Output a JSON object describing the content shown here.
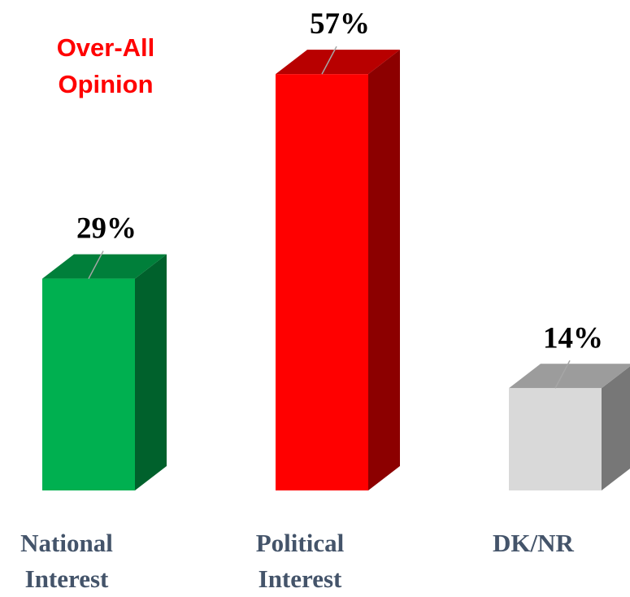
{
  "chart_data": {
    "type": "bar3d",
    "title": "Over-All Opinion",
    "categories": [
      "National Interest",
      "Political Interest",
      "DK/NR"
    ],
    "values": [
      29,
      57,
      14
    ],
    "value_labels": [
      "29%",
      "57%",
      "14%"
    ],
    "colors": [
      "#00b050",
      "#ff0000",
      "#d9d9d9"
    ],
    "title_color": "#ff0000"
  }
}
